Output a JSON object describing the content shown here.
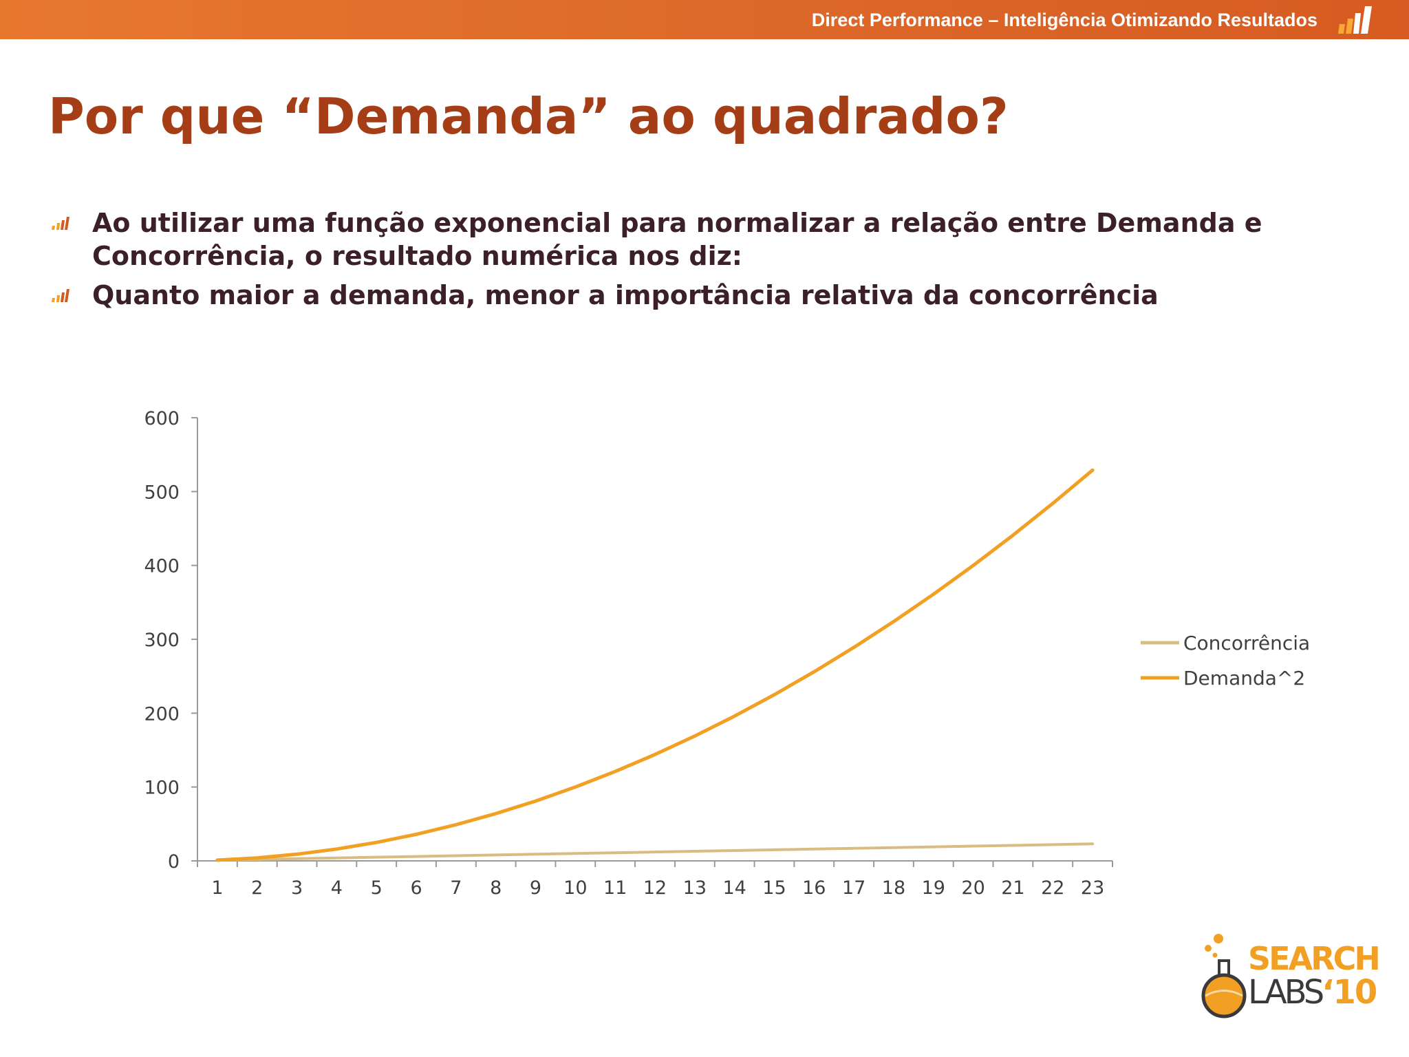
{
  "header": {
    "text": "Direct Performance – Inteligência Otimizando Resultados",
    "logo_icon": "ascending-bars-logo-icon",
    "background_color": "#df6b2a"
  },
  "title": "Por que “Demanda” ao quadrado?",
  "bullets": [
    {
      "icon": "ascending-bars-bullet-icon",
      "text": "Ao utilizar uma função exponencial para normalizar a relação entre Demanda e Concorrência, o resultado numérica nos diz:"
    },
    {
      "icon": "ascending-bars-bullet-icon",
      "text": "Quanto maior a demanda, menor a importância relativa da concorrência"
    }
  ],
  "brand_logo": {
    "icon": "flask-icon",
    "text_top": "SEARCH",
    "text_bottom": "LABS",
    "text_year": "‘10"
  },
  "colors": {
    "title": "#a53e16",
    "body_text": "#3b1f2b",
    "header": "#df6b2a",
    "concorrencia": "#d9bc82",
    "demanda": "#f2a023"
  },
  "chart_data": {
    "type": "line",
    "x": [
      1,
      2,
      3,
      4,
      5,
      6,
      7,
      8,
      9,
      10,
      11,
      12,
      13,
      14,
      15,
      16,
      17,
      18,
      19,
      20,
      21,
      22,
      23
    ],
    "categories": [
      "1",
      "2",
      "3",
      "4",
      "5",
      "6",
      "7",
      "8",
      "9",
      "10",
      "11",
      "12",
      "13",
      "14",
      "15",
      "16",
      "17",
      "18",
      "19",
      "20",
      "21",
      "22",
      "23"
    ],
    "series": [
      {
        "name": "Concorrência",
        "color": "#d9bc82",
        "values": [
          1,
          2,
          3,
          4,
          5,
          6,
          7,
          8,
          9,
          10,
          11,
          12,
          13,
          14,
          15,
          16,
          17,
          18,
          19,
          20,
          21,
          22,
          23
        ]
      },
      {
        "name": "Demanda^2",
        "color": "#f2a023",
        "values": [
          1,
          4,
          9,
          16,
          25,
          36,
          49,
          64,
          81,
          100,
          121,
          144,
          169,
          196,
          225,
          256,
          289,
          324,
          361,
          400,
          441,
          484,
          529
        ]
      }
    ],
    "ylim": [
      0,
      600
    ],
    "yticks": [
      "0",
      "100",
      "200",
      "300",
      "400",
      "500",
      "600"
    ],
    "legend_position": "right",
    "grid": false
  }
}
